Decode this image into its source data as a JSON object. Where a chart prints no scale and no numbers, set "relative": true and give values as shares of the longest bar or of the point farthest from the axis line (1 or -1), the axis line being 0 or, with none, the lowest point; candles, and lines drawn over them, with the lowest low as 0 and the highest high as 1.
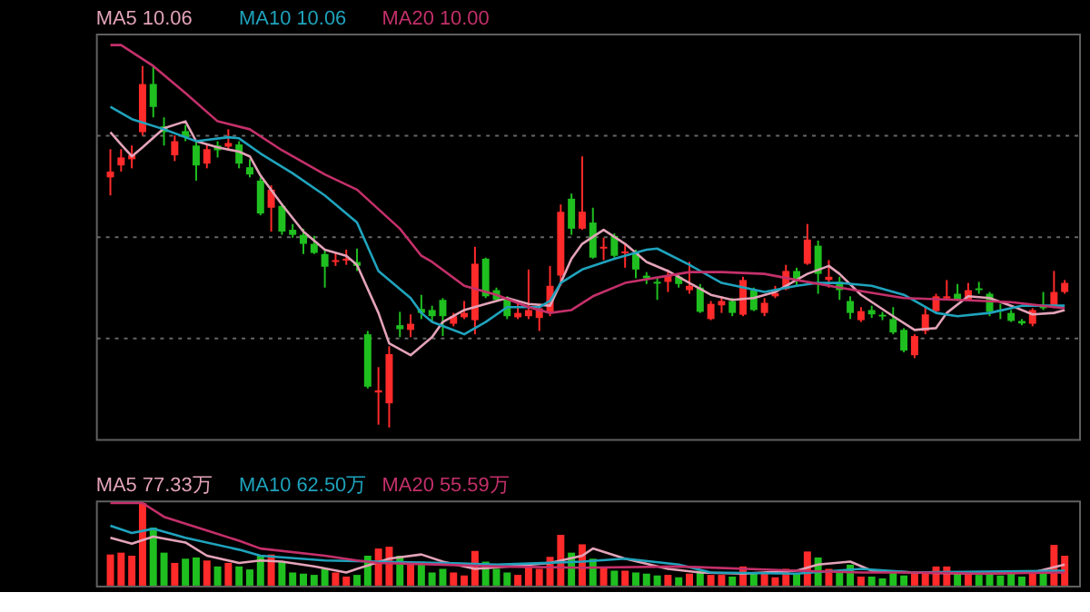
{
  "chart_data": [
    {
      "type": "candlestick",
      "relative": true,
      "grid": "y",
      "tick_labels": false,
      "categories": [
        null,
        null,
        null,
        null,
        null,
        null,
        null,
        null,
        null,
        null,
        null,
        null,
        null,
        null,
        null,
        null,
        null,
        null,
        null,
        null,
        null,
        null,
        null,
        null,
        null,
        null,
        null,
        null,
        null,
        null,
        null,
        null,
        null,
        null,
        null,
        null,
        null,
        null,
        null,
        null,
        null,
        null,
        null,
        null,
        null,
        null,
        null,
        null,
        null,
        null,
        null,
        null,
        null,
        null,
        null,
        null,
        null,
        null,
        null,
        null,
        null,
        null,
        null,
        null,
        null,
        null,
        null,
        null,
        null,
        null,
        null,
        null,
        null,
        null,
        null,
        null,
        null,
        null,
        null,
        null,
        null,
        null,
        null,
        null,
        null,
        null,
        null,
        null,
        null,
        null
      ],
      "ohlc": [
        [
          0.692,
          0.77,
          0.642,
          0.708
        ],
        [
          0.725,
          0.77,
          0.708,
          0.747
        ],
        [
          0.742,
          0.78,
          0.717,
          0.753
        ],
        [
          0.817,
          1,
          0.808,
          0.95
        ],
        [
          0.95,
          1,
          0.858,
          0.887
        ],
        [
          0.833,
          0.858,
          0.78,
          0.817
        ],
        [
          0.753,
          0.808,
          0.737,
          0.792
        ],
        [
          0.82,
          0.837,
          0.792,
          0.803
        ],
        [
          0.78,
          0.792,
          0.683,
          0.725
        ],
        [
          0.73,
          0.783,
          0.717,
          0.77
        ],
        [
          0.78,
          0.792,
          0.747,
          0.767
        ],
        [
          0.777,
          0.825,
          0.767,
          0.787
        ],
        [
          0.783,
          0.792,
          0.717,
          0.73
        ],
        [
          0.72,
          0.742,
          0.692,
          0.7
        ],
        [
          0.683,
          0.692,
          0.587,
          0.592
        ],
        [
          0.608,
          0.67,
          0.542,
          0.658
        ],
        [
          0.613,
          0.62,
          0.533,
          0.542
        ],
        [
          0.547,
          0.563,
          0.525,
          0.533
        ],
        [
          0.533,
          0.55,
          0.48,
          0.508
        ],
        [
          0.508,
          0.53,
          0.48,
          0.483
        ],
        [
          0.48,
          0.492,
          0.387,
          0.445
        ],
        [
          0.458,
          0.483,
          0.447,
          0.463
        ],
        [
          0.462,
          0.492,
          0.45,
          0.467
        ],
        [
          0.458,
          0.495,
          0.433,
          0.447
        ],
        [
          0.258,
          0.267,
          0.108,
          0.113
        ],
        [
          0.097,
          0.167,
          0.008,
          0.103
        ],
        [
          0.067,
          0.225,
          0,
          0.203
        ],
        [
          0.283,
          0.32,
          0.25,
          0.272
        ],
        [
          0.27,
          0.313,
          0.25,
          0.287
        ],
        [
          0.328,
          0.367,
          0.3,
          0.317
        ],
        [
          0.325,
          0.337,
          0.292,
          0.308
        ],
        [
          0.353,
          0.358,
          0.253,
          0.308
        ],
        [
          0.287,
          0.317,
          0.28,
          0.308
        ],
        [
          0.305,
          0.35,
          0.3,
          0.317
        ],
        [
          0.297,
          0.5,
          0.258,
          0.453
        ],
        [
          0.467,
          0.47,
          0.358,
          0.363
        ],
        [
          0.38,
          0.387,
          0.35,
          0.353
        ],
        [
          0.358,
          0.363,
          0.3,
          0.308
        ],
        [
          0.305,
          0.35,
          0.3,
          0.317
        ],
        [
          0.308,
          0.437,
          0.3,
          0.325
        ],
        [
          0.303,
          0.342,
          0.267,
          0.33
        ],
        [
          0.317,
          0.447,
          0.308,
          0.392
        ],
        [
          0.42,
          0.617,
          0.392,
          0.597
        ],
        [
          0.633,
          0.647,
          0.533,
          0.55
        ],
        [
          0.55,
          0.75,
          0.547,
          0.597
        ],
        [
          0.567,
          0.608,
          0.467,
          0.47
        ],
        [
          0.495,
          0.525,
          0.463,
          0.5
        ],
        [
          0.53,
          0.537,
          0.47,
          0.475
        ],
        [
          0.482,
          0.508,
          0.442,
          0.487
        ],
        [
          0.483,
          0.492,
          0.413,
          0.437
        ],
        [
          0.42,
          0.43,
          0.397,
          0.413
        ],
        [
          0.403,
          0.413,
          0.353,
          0.398
        ],
        [
          0.403,
          0.437,
          0.375,
          0.42
        ],
        [
          0.417,
          0.425,
          0.387,
          0.397
        ],
        [
          0.38,
          0.458,
          0.37,
          0.392
        ],
        [
          0.387,
          0.397,
          0.317,
          0.32
        ],
        [
          0.3,
          0.35,
          0.297,
          0.342
        ],
        [
          0.338,
          0.363,
          0.317,
          0.35
        ],
        [
          0.35,
          0.358,
          0.308,
          0.317
        ],
        [
          0.312,
          0.417,
          0.308,
          0.408
        ],
        [
          0.38,
          0.387,
          0.322,
          0.325
        ],
        [
          0.317,
          0.358,
          0.308,
          0.345
        ],
        [
          0.363,
          0.392,
          0.358,
          0.372
        ],
        [
          0.383,
          0.45,
          0.38,
          0.433
        ],
        [
          0.433,
          0.442,
          0.392,
          0.408
        ],
        [
          0.453,
          0.563,
          0.45,
          0.52
        ],
        [
          0.503,
          0.517,
          0.37,
          0.425
        ],
        [
          0.408,
          0.463,
          0.387,
          0.417
        ],
        [
          0.403,
          0.417,
          0.353,
          0.38
        ],
        [
          0.35,
          0.363,
          0.3,
          0.317
        ],
        [
          0.297,
          0.333,
          0.292,
          0.322
        ],
        [
          0.325,
          0.337,
          0.303,
          0.313
        ],
        [
          0.312,
          0.32,
          0.297,
          0.307
        ],
        [
          0.3,
          0.333,
          0.258,
          0.263
        ],
        [
          0.27,
          0.275,
          0.208,
          0.213
        ],
        [
          0.2,
          0.258,
          0.192,
          0.253
        ],
        [
          0.267,
          0.333,
          0.258,
          0.313
        ],
        [
          0.322,
          0.37,
          0.317,
          0.363
        ],
        [
          0.357,
          0.408,
          0.353,
          0.363
        ],
        [
          0.37,
          0.397,
          0.35,
          0.353
        ],
        [
          0.353,
          0.4,
          0.35,
          0.38
        ],
        [
          0.385,
          0.403,
          0.37,
          0.38
        ],
        [
          0.37,
          0.375,
          0.308,
          0.32
        ],
        [
          0.325,
          0.342,
          0.3,
          0.322
        ],
        [
          0.317,
          0.325,
          0.292,
          0.295
        ],
        [
          0.295,
          0.3,
          0.283,
          0.288
        ],
        [
          0.287,
          0.33,
          0.28,
          0.325
        ],
        [
          0.337,
          0.375,
          0.325,
          0.33
        ],
        [
          0.337,
          0.433,
          0.33,
          0.375
        ],
        [
          0.375,
          0.408,
          0.37,
          0.4
        ]
      ],
      "colors": [
        "#ff2a2a",
        "#ff2a2a",
        "#ff2a2a",
        "#ff2a2a",
        "#1fbf1f",
        "#1fbf1f",
        "#ff2a2a",
        "#1fbf1f",
        "#1fbf1f",
        "#ff2a2a",
        "#1fbf1f",
        "#ff2a2a",
        "#1fbf1f",
        "#1fbf1f",
        "#1fbf1f",
        "#ff2a2a",
        "#1fbf1f",
        "#1fbf1f",
        "#1fbf1f",
        "#1fbf1f",
        "#1fbf1f",
        "#ff2a2a",
        "#ff2a2a",
        "#1fbf1f",
        "#1fbf1f",
        "#ff2a2a",
        "#ff2a2a",
        "#1fbf1f",
        "#ff2a2a",
        "#1fbf1f",
        "#1fbf1f",
        "#1fbf1f",
        "#ff2a2a",
        "#ff2a2a",
        "#ff2a2a",
        "#1fbf1f",
        "#1fbf1f",
        "#1fbf1f",
        "#ff2a2a",
        "#ff2a2a",
        "#ff2a2a",
        "#ff2a2a",
        "#ff2a2a",
        "#1fbf1f",
        "#ff2a2a",
        "#1fbf1f",
        "#ff2a2a",
        "#1fbf1f",
        "#ff2a2a",
        "#1fbf1f",
        "#1fbf1f",
        "#1fbf1f",
        "#ff2a2a",
        "#1fbf1f",
        "#ff2a2a",
        "#1fbf1f",
        "#ff2a2a",
        "#ff2a2a",
        "#1fbf1f",
        "#ff2a2a",
        "#1fbf1f",
        "#ff2a2a",
        "#ff2a2a",
        "#ff2a2a",
        "#1fbf1f",
        "#ff2a2a",
        "#1fbf1f",
        "#ff2a2a",
        "#1fbf1f",
        "#1fbf1f",
        "#ff2a2a",
        "#1fbf1f",
        "#1fbf1f",
        "#1fbf1f",
        "#1fbf1f",
        "#ff2a2a",
        "#ff2a2a",
        "#ff2a2a",
        "#ff2a2a",
        "#1fbf1f",
        "#ff2a2a",
        "#1fbf1f",
        "#1fbf1f",
        "#1fbf1f",
        "#1fbf1f",
        "#1fbf1f",
        "#ff2a2a",
        "#1fbf1f",
        "#ff2a2a",
        "#ff2a2a"
      ],
      "series": [
        {
          "name": "MA5 10.06",
          "type": "line",
          "color": "#e3a3b8",
          "values": [
            0.817,
            0.783,
            0.75,
            0.775,
            null,
            0.828,
            null,
            0.847,
            0.792,
            null,
            0.775,
            null,
            0.763,
            0.75,
            0.697,
            null,
            0.617,
            null,
            0.542,
            null,
            0.492,
            null,
            0.475,
            0.45,
            null,
            0.317,
            0.233,
            null,
            0.2,
            0.225,
            0.25,
            0.292,
            null,
            0.325,
            null,
            0.342,
            null,
            0.358,
            null,
            0.342,
            null,
            0.337,
            0.4,
            0.467,
            0.508,
            null,
            0.547,
            null,
            0.508,
            null,
            0.458,
            null,
            0.433,
            null,
            0.4,
            null,
            0.367,
            null,
            0.353,
            null,
            0.358,
            null,
            0.375,
            0.392,
            null,
            0.425,
            null,
            0.447,
            0.425,
            null,
            0.367,
            null,
            null,
            0.308,
            null,
            0.27,
            null,
            0.275,
            0.317,
            null,
            0.363,
            null,
            0.358,
            null,
            0.337,
            null,
            0.313,
            null,
            0.317,
            0.325
          ]
        },
        {
          "name": "MA10 10.06",
          "type": "line",
          "color": "#1fa3bd",
          "values": [
            0.887,
            null,
            0.853,
            null,
            null,
            0.825,
            null,
            null,
            0.792,
            null,
            null,
            0.803,
            0.8,
            null,
            0.758,
            null,
            null,
            0.703,
            null,
            null,
            0.642,
            null,
            null,
            0.567,
            null,
            0.433,
            null,
            null,
            0.358,
            0.317,
            0.292,
            null,
            null,
            0.258,
            null,
            0.292,
            null,
            0.333,
            null,
            null,
            0.333,
            0.35,
            0.4,
            null,
            0.437,
            null,
            null,
            0.467,
            null,
            null,
            0.492,
            0.495,
            null,
            null,
            0.45,
            null,
            null,
            0.4,
            null,
            null,
            null,
            0.375,
            null,
            null,
            0.392,
            null,
            0.4,
            null,
            0.4,
            null,
            null,
            0.392,
            null,
            null,
            0.367,
            null,
            null,
            0.317,
            null,
            0.308,
            null,
            null,
            0.317,
            null,
            null,
            0.337,
            null,
            null,
            null,
            0.337
          ]
        },
        {
          "name": "MA20 10.00",
          "type": "line",
          "color": "#c4306a",
          "values": [
            1.058,
            1.058,
            null,
            null,
            1.0,
            null,
            null,
            0.925,
            null,
            null,
            0.847,
            null,
            null,
            0.825,
            null,
            null,
            0.767,
            null,
            null,
            null,
            0.7,
            null,
            null,
            0.658,
            null,
            null,
            null,
            0.55,
            null,
            0.475,
            0.458,
            null,
            null,
            0.392,
            null,
            null,
            0.367,
            null,
            null,
            0.333,
            null,
            0.317,
            null,
            0.325,
            null,
            0.363,
            null,
            null,
            0.4,
            null,
            null,
            null,
            0.42,
            null,
            0.43,
            null,
            null,
            0.43,
            null,
            null,
            null,
            0.425,
            null,
            null,
            0.408,
            null,
            null,
            null,
            0.387,
            null,
            null,
            null,
            null,
            null,
            0.358,
            null,
            null,
            null,
            null,
            0.353,
            null,
            null,
            null,
            null,
            0.347,
            null,
            null,
            null,
            null,
            0.33
          ]
        }
      ]
    },
    {
      "type": "bar",
      "relative": true,
      "tick_labels": false,
      "categories": [
        null,
        null,
        null,
        null,
        null,
        null,
        null,
        null,
        null,
        null,
        null,
        null,
        null,
        null,
        null,
        null,
        null,
        null,
        null,
        null,
        null,
        null,
        null,
        null,
        null,
        null,
        null,
        null,
        null,
        null,
        null,
        null,
        null,
        null,
        null,
        null,
        null,
        null,
        null,
        null,
        null,
        null,
        null,
        null,
        null,
        null,
        null,
        null,
        null,
        null,
        null,
        null,
        null,
        null,
        null,
        null,
        null,
        null,
        null,
        null,
        null,
        null,
        null,
        null,
        null,
        null,
        null,
        null,
        null,
        null,
        null,
        null,
        null,
        null,
        null,
        null,
        null,
        null,
        null,
        null,
        null,
        null,
        null,
        null,
        null,
        null,
        null,
        null,
        null,
        null
      ],
      "values": [
        0.377,
        0.399,
        0.362,
        1,
        0.703,
        0.399,
        0.275,
        0.326,
        0.341,
        0.304,
        0.232,
        0.275,
        0.232,
        0.196,
        0.362,
        0.377,
        0.29,
        0.159,
        0.145,
        0.13,
        0.203,
        0.159,
        0.109,
        0.13,
        0.362,
        0.449,
        0.471,
        0.362,
        0.254,
        0.29,
        0.159,
        0.203,
        0.159,
        0.123,
        0.42,
        0.29,
        0.203,
        0.159,
        0.13,
        0.275,
        0.203,
        0.348,
        0.616,
        0.399,
        0.5,
        0.326,
        0.217,
        0.181,
        0.181,
        0.159,
        0.145,
        0.123,
        0.13,
        0.101,
        0.145,
        0.181,
        0.13,
        0.13,
        0.109,
        0.232,
        0.145,
        0.145,
        0.101,
        0.203,
        0.145,
        0.413,
        0.341,
        0.203,
        0.174,
        0.254,
        0.109,
        0.109,
        0.087,
        0.167,
        0.123,
        0.145,
        0.159,
        0.232,
        0.232,
        0.145,
        0.159,
        0.13,
        0.159,
        0.123,
        0.145,
        0.109,
        0.159,
        0.167,
        0.493,
        0.362
      ],
      "colors": [
        "#ff2a2a",
        "#ff2a2a",
        "#ff2a2a",
        "#ff2a2a",
        "#1fbf1f",
        "#1fbf1f",
        "#ff2a2a",
        "#1fbf1f",
        "#1fbf1f",
        "#ff2a2a",
        "#1fbf1f",
        "#ff2a2a",
        "#1fbf1f",
        "#1fbf1f",
        "#1fbf1f",
        "#ff2a2a",
        "#1fbf1f",
        "#1fbf1f",
        "#1fbf1f",
        "#1fbf1f",
        "#1fbf1f",
        "#ff2a2a",
        "#ff2a2a",
        "#1fbf1f",
        "#1fbf1f",
        "#ff2a2a",
        "#ff2a2a",
        "#1fbf1f",
        "#ff2a2a",
        "#1fbf1f",
        "#1fbf1f",
        "#1fbf1f",
        "#ff2a2a",
        "#ff2a2a",
        "#ff2a2a",
        "#1fbf1f",
        "#1fbf1f",
        "#1fbf1f",
        "#ff2a2a",
        "#ff2a2a",
        "#ff2a2a",
        "#ff2a2a",
        "#ff2a2a",
        "#1fbf1f",
        "#ff2a2a",
        "#1fbf1f",
        "#ff2a2a",
        "#1fbf1f",
        "#ff2a2a",
        "#1fbf1f",
        "#1fbf1f",
        "#1fbf1f",
        "#ff2a2a",
        "#1fbf1f",
        "#ff2a2a",
        "#1fbf1f",
        "#ff2a2a",
        "#ff2a2a",
        "#1fbf1f",
        "#ff2a2a",
        "#1fbf1f",
        "#ff2a2a",
        "#ff2a2a",
        "#ff2a2a",
        "#1fbf1f",
        "#ff2a2a",
        "#1fbf1f",
        "#ff2a2a",
        "#1fbf1f",
        "#1fbf1f",
        "#ff2a2a",
        "#1fbf1f",
        "#1fbf1f",
        "#1fbf1f",
        "#1fbf1f",
        "#ff2a2a",
        "#ff2a2a",
        "#ff2a2a",
        "#ff2a2a",
        "#1fbf1f",
        "#ff2a2a",
        "#1fbf1f",
        "#1fbf1f",
        "#1fbf1f",
        "#1fbf1f",
        "#1fbf1f",
        "#ff2a2a",
        "#1fbf1f",
        "#ff2a2a",
        "#ff2a2a"
      ],
      "series": [
        {
          "name": "MA5 77.33万",
          "type": "line",
          "color": "#e3a3b8",
          "values": [
            0.58,
            null,
            0.507,
            null,
            0.594,
            null,
            null,
            0.522,
            null,
            0.362,
            null,
            null,
            0.275,
            null,
            0.304,
            null,
            0.29,
            null,
            null,
            0.232,
            null,
            null,
            0.159,
            0.203,
            null,
            null,
            0.326,
            null,
            null,
            0.377,
            null,
            0.29,
            null,
            null,
            0.203,
            null,
            null,
            0.232,
            null,
            null,
            null,
            0.275,
            null,
            null,
            0.362,
            0.449,
            null,
            null,
            0.326,
            null,
            null,
            null,
            0.203,
            null,
            null,
            0.159,
            null,
            null,
            null,
            0.145,
            null,
            null,
            null,
            null,
            0.181,
            null,
            0.254,
            null,
            null,
            0.29,
            null,
            0.181,
            null,
            null,
            null,
            0.159,
            null,
            null,
            null,
            null,
            null,
            0.145,
            null,
            null,
            null,
            null,
            0.159,
            null,
            null,
            0.254
          ]
        },
        {
          "name": "MA10 62.50万",
          "type": "line",
          "color": "#1fa3bd",
          "values": [
            0.725,
            null,
            0.638,
            null,
            0.688,
            null,
            null,
            0.58,
            null,
            null,
            null,
            null,
            0.435,
            null,
            0.362,
            null,
            null,
            null,
            null,
            null,
            0.304,
            null,
            null,
            null,
            null,
            0.29,
            null,
            null,
            null,
            null,
            null,
            0.275,
            null,
            null,
            null,
            null,
            0.254,
            null,
            null,
            null,
            null,
            null,
            null,
            null,
            0.29,
            null,
            null,
            null,
            0.326,
            null,
            null,
            null,
            null,
            0.254,
            null,
            null,
            0.159,
            null,
            null,
            null,
            null,
            null,
            null,
            null,
            0.145,
            null,
            null,
            null,
            null,
            null,
            0.203,
            null,
            null,
            null,
            null,
            0.159,
            null,
            null,
            null,
            null,
            null,
            null,
            null,
            null,
            null,
            null,
            null,
            null,
            null,
            0.181
          ]
        },
        {
          "name": "MA20 55.59万",
          "type": "line",
          "color": "#c4306a",
          "values": [
            1.0,
            null,
            null,
            1.0,
            null,
            0.833,
            null,
            null,
            null,
            0.667,
            null,
            null,
            0.543,
            null,
            0.449,
            null,
            null,
            null,
            null,
            null,
            0.362,
            null,
            null,
            0.304,
            null,
            0.275,
            null,
            null,
            null,
            null,
            null,
            0.254,
            null,
            null,
            null,
            null,
            0.232,
            null,
            null,
            null,
            null,
            null,
            null,
            null,
            0.217,
            null,
            null,
            null,
            null,
            null,
            null,
            null,
            null,
            0.232,
            null,
            null,
            null,
            null,
            null,
            null,
            null,
            null,
            null,
            null,
            0.181,
            null,
            null,
            null,
            null,
            null,
            0.159,
            null,
            null,
            null,
            null,
            0.159,
            null,
            null,
            null,
            null,
            null,
            0.145,
            null,
            null,
            null,
            null,
            null,
            null,
            null,
            0.159
          ]
        }
      ]
    }
  ]
}
